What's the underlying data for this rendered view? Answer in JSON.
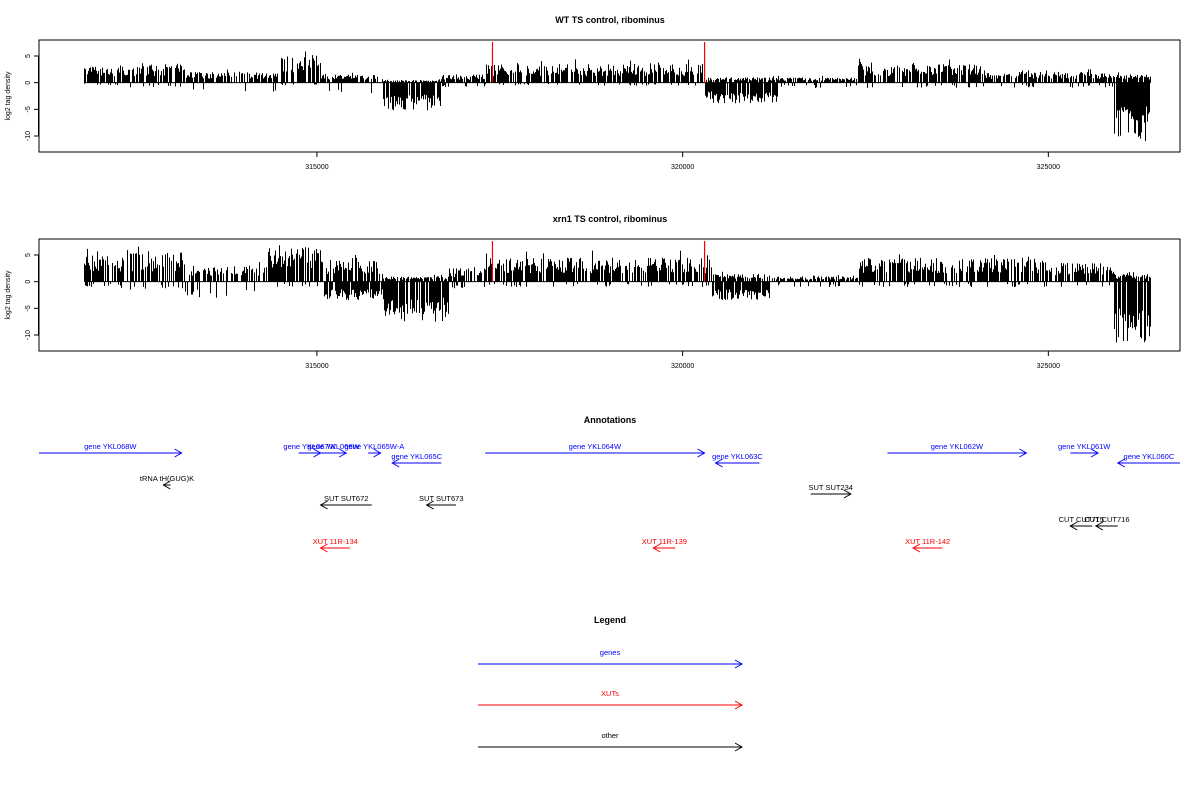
{
  "chart_data": [
    {
      "type": "bar",
      "title": "WT TS control, ribominus",
      "ylabel": "log2 tag density",
      "x_range": [
        311200,
        326800
      ],
      "ylim": [
        -13,
        8
      ],
      "y_ticks": [
        5,
        0,
        -5,
        -10
      ],
      "x_ticks": [
        315000,
        320000,
        325000
      ],
      "x_tick_labels": [
        "315000",
        "320000",
        "325000"
      ],
      "markers": {
        "color": "#ff0000",
        "x": [
          317400,
          320300
        ]
      },
      "density_regions": [
        {
          "start": 311820,
          "end": 312300,
          "pos": 3.0,
          "neg": 0.5
        },
        {
          "start": 312300,
          "end": 313200,
          "pos": 3.5,
          "neg": 1.0
        },
        {
          "start": 313200,
          "end": 314500,
          "pos": 2.0,
          "neg": 2.0
        },
        {
          "start": 314500,
          "end": 315050,
          "pos": 5.5,
          "neg": 0.5
        },
        {
          "start": 315050,
          "end": 315900,
          "pos": 1.5,
          "neg": 2.0
        },
        {
          "start": 315900,
          "end": 316700,
          "pos": 0.5,
          "neg": 5.5
        },
        {
          "start": 316700,
          "end": 317300,
          "pos": 1.5,
          "neg": 1.0
        },
        {
          "start": 317300,
          "end": 320300,
          "pos": 3.5,
          "neg": 0.6
        },
        {
          "start": 320300,
          "end": 321300,
          "pos": 1.0,
          "neg": 4.0
        },
        {
          "start": 321300,
          "end": 322400,
          "pos": 1.0,
          "neg": 1.0
        },
        {
          "start": 322400,
          "end": 324100,
          "pos": 3.5,
          "neg": 1.0
        },
        {
          "start": 324100,
          "end": 325900,
          "pos": 2.0,
          "neg": 1.0
        },
        {
          "start": 325900,
          "end": 326400,
          "pos": 1.5,
          "neg": 11.0
        }
      ]
    },
    {
      "type": "bar",
      "title": "xrn1 TS control, ribominus",
      "ylabel": "log2 tag density",
      "x_range": [
        311200,
        326800
      ],
      "ylim": [
        -13,
        8
      ],
      "y_ticks": [
        5,
        0,
        -5,
        -10
      ],
      "x_ticks": [
        315000,
        320000,
        325000
      ],
      "x_tick_labels": [
        "315000",
        "320000",
        "325000"
      ],
      "markers": {
        "color": "#ff0000",
        "x": [
          317400,
          320300
        ]
      },
      "density_regions": [
        {
          "start": 311820,
          "end": 312300,
          "pos": 5.0,
          "neg": 1.0
        },
        {
          "start": 312300,
          "end": 313200,
          "pos": 5.5,
          "neg": 1.5
        },
        {
          "start": 313200,
          "end": 314300,
          "pos": 3.0,
          "neg": 3.0
        },
        {
          "start": 314300,
          "end": 315100,
          "pos": 6.5,
          "neg": 1.0
        },
        {
          "start": 315100,
          "end": 315900,
          "pos": 4.0,
          "neg": 3.5
        },
        {
          "start": 315900,
          "end": 316800,
          "pos": 1.0,
          "neg": 7.5
        },
        {
          "start": 316800,
          "end": 317300,
          "pos": 2.5,
          "neg": 1.5
        },
        {
          "start": 317300,
          "end": 320400,
          "pos": 4.5,
          "neg": 1.0
        },
        {
          "start": 320400,
          "end": 321200,
          "pos": 1.5,
          "neg": 3.5
        },
        {
          "start": 321200,
          "end": 322400,
          "pos": 1.0,
          "neg": 1.0
        },
        {
          "start": 322400,
          "end": 325000,
          "pos": 4.5,
          "neg": 1.0
        },
        {
          "start": 325000,
          "end": 325900,
          "pos": 3.5,
          "neg": 1.0
        },
        {
          "start": 325900,
          "end": 326400,
          "pos": 1.5,
          "neg": 11.5
        }
      ]
    }
  ],
  "annotations": {
    "title": "Annotations",
    "x_range": [
      311200,
      326800
    ],
    "colors": {
      "gene": "#0000ff",
      "xut": "#ff0000",
      "other": "#000000"
    },
    "features": [
      {
        "label": "gene YKL068W",
        "kind": "gene",
        "start": 311200,
        "end": 313150,
        "strand": "+",
        "row": 0
      },
      {
        "label": "gene YKL067W",
        "kind": "gene",
        "start": 314750,
        "end": 315050,
        "strand": "+",
        "row": 0
      },
      {
        "label": "gene YKL066W",
        "kind": "gene",
        "start": 315050,
        "end": 315400,
        "strand": "+",
        "row": 0
      },
      {
        "label": "gene YKL065W-A",
        "kind": "gene",
        "start": 315700,
        "end": 315870,
        "strand": "+",
        "row": 0
      },
      {
        "label": "gene YKL065C",
        "kind": "gene",
        "start": 316030,
        "end": 316700,
        "strand": "-",
        "row": 1
      },
      {
        "label": "gene YKL064W",
        "kind": "gene",
        "start": 317300,
        "end": 320300,
        "strand": "+",
        "row": 0
      },
      {
        "label": "gene YKL063C",
        "kind": "gene",
        "start": 320450,
        "end": 321050,
        "strand": "-",
        "row": 1
      },
      {
        "label": "gene YKL062W",
        "kind": "gene",
        "start": 322800,
        "end": 324700,
        "strand": "+",
        "row": 0
      },
      {
        "label": "gene YKL061W",
        "kind": "gene",
        "start": 325300,
        "end": 325680,
        "strand": "+",
        "row": 0
      },
      {
        "label": "gene YKL060C",
        "kind": "gene",
        "start": 325950,
        "end": 326800,
        "strand": "-",
        "row": 1
      },
      {
        "label": "tRNA tH(GUG)K",
        "kind": "other",
        "start": 312900,
        "end": 313000,
        "strand": "-",
        "row": 2
      },
      {
        "label": "SUT SUT672",
        "kind": "other",
        "start": 315050,
        "end": 315750,
        "strand": "-",
        "row": 3
      },
      {
        "label": "SUT SUT673",
        "kind": "other",
        "start": 316500,
        "end": 316900,
        "strand": "-",
        "row": 3
      },
      {
        "label": "SUT SUT234",
        "kind": "other",
        "start": 321750,
        "end": 322300,
        "strand": "+",
        "row": 2.5
      },
      {
        "label": "CUT CUT715",
        "kind": "other",
        "start": 325300,
        "end": 325600,
        "strand": "-",
        "row": 4
      },
      {
        "label": "CUT CUT716",
        "kind": "other",
        "start": 325650,
        "end": 325950,
        "strand": "-",
        "row": 4
      },
      {
        "label": "XUT 11R-134",
        "kind": "xut",
        "start": 315050,
        "end": 315450,
        "strand": "-",
        "row": 5
      },
      {
        "label": "XUT 11R-139",
        "kind": "xut",
        "start": 319600,
        "end": 319900,
        "strand": "-",
        "row": 5
      },
      {
        "label": "XUT 11R-142",
        "kind": "xut",
        "start": 323150,
        "end": 323550,
        "strand": "-",
        "row": 5
      }
    ]
  },
  "legend": {
    "title": "Legend",
    "items": [
      {
        "label": "genes",
        "color": "#0000ff"
      },
      {
        "label": "XUTs",
        "color": "#ff0000"
      },
      {
        "label": "other",
        "color": "#000000"
      }
    ]
  }
}
